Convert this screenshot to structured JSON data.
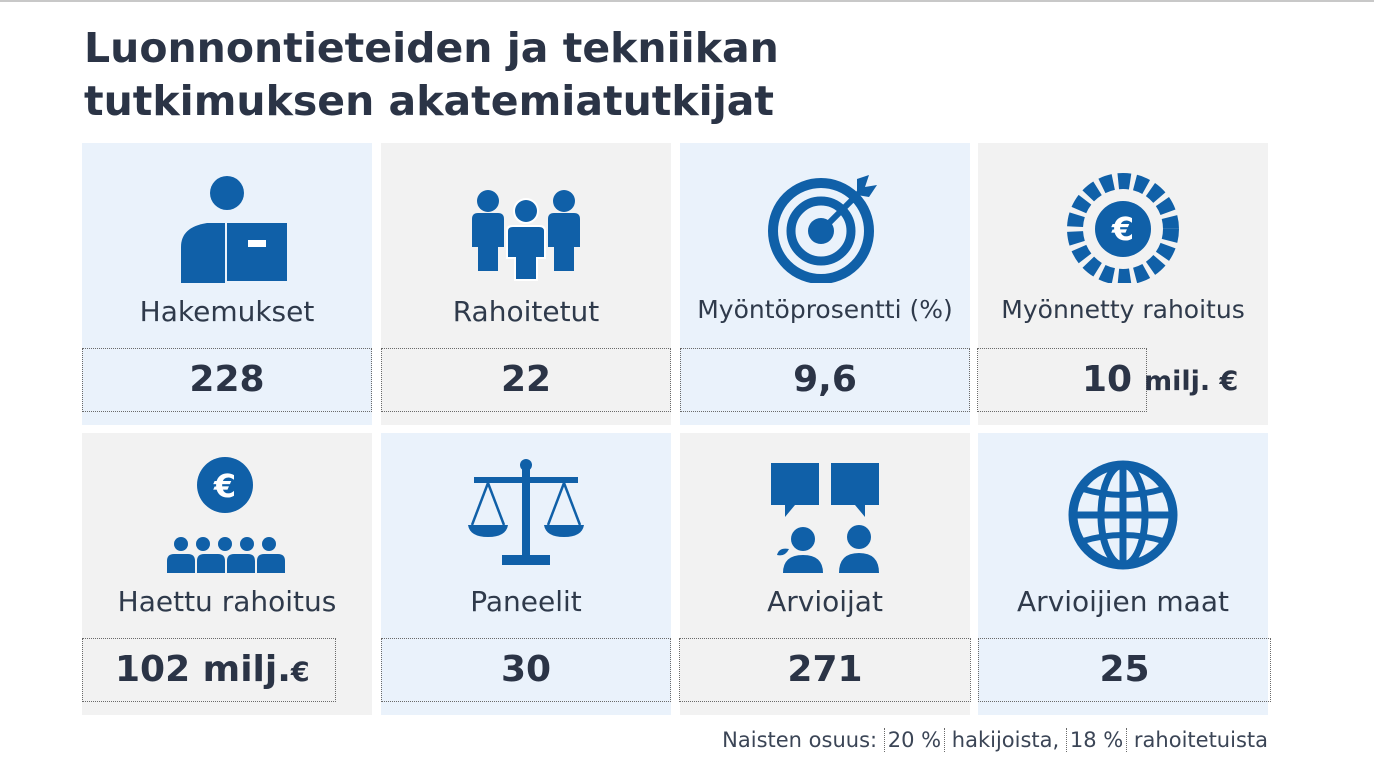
{
  "title": {
    "line1": "Luonnontieteiden ja tekniikan",
    "line2": "tutkimuksen akatemiatutkijat"
  },
  "colors": {
    "accent": "#1060a8",
    "text": "#2b3446",
    "card_blue": "#eaf2fb",
    "card_grey": "#f2f2f2"
  },
  "cards": [
    {
      "icon": "applicant-icon",
      "label": "Hakemukset",
      "value": "228",
      "unit": ""
    },
    {
      "icon": "people-group-icon",
      "label": "Rahoitetut",
      "value": "22",
      "unit": ""
    },
    {
      "icon": "target-icon",
      "label": "Myöntöprosentti (%)",
      "value": "9,6",
      "unit": ""
    },
    {
      "icon": "euro-coin-icon",
      "label": "Myönnetty rahoitus",
      "value": "10",
      "unit": "milj. €"
    },
    {
      "icon": "euro-people-icon",
      "label": "Haettu rahoitus",
      "value": "102 milj.",
      "unit": "€"
    },
    {
      "icon": "scales-icon",
      "label": "Paneelit",
      "value": "30",
      "unit": ""
    },
    {
      "icon": "reviewers-icon",
      "label": "Arvioijat",
      "value": "271",
      "unit": ""
    },
    {
      "icon": "globe-icon",
      "label": "Arvioijien maat",
      "value": "25",
      "unit": ""
    }
  ],
  "footnote": {
    "prefix": "Naisten osuus: ",
    "women_applicants": "20 %",
    "middle": " hakijoista, ",
    "women_funded": "18 %",
    "suffix": " rahoitetuista"
  }
}
